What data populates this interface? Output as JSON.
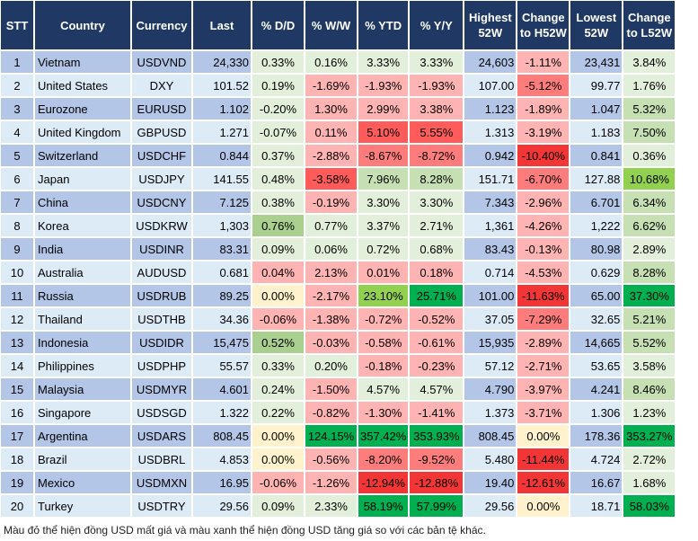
{
  "headers": [
    "STT",
    "Country",
    "Currency",
    "Last",
    "% D/D",
    "% W/W",
    "% YTD",
    "% Y/Y",
    "Highest 52W",
    "Change to H52W",
    "Lowest 52W",
    "Change to L52W"
  ],
  "color_legend": {
    "g1": "#E2EFDA",
    "g2": "#C6E0B4",
    "g3": "#A9D08E",
    "g4": "#92D050",
    "g5": "#00B050",
    "y": "#FFF2CC",
    "r1": "#FFB3B3",
    "r2": "#FF7C7C",
    "r3": "#FF5B5B",
    "r4": "#F33535",
    "header": "#203864",
    "row_odd": "#B4C6E7",
    "row_even": "#DDEBF7"
  },
  "rows": [
    {
      "stt": "1",
      "country": "Vietnam",
      "currency": "USDVND",
      "last": "24,330",
      "dd": "0.33%",
      "ww": "0.16%",
      "ytd": "3.33%",
      "yy": "3.33%",
      "high": "24,603",
      "ch": "-1.11%",
      "low": "23,431",
      "cl": "3.84%",
      "colors": [
        "g1",
        "g1",
        "g1",
        "g1",
        "r1",
        "g1"
      ]
    },
    {
      "stt": "2",
      "country": "United States",
      "currency": "DXY",
      "last": "101.52",
      "dd": "0.19%",
      "ww": "-1.69%",
      "ytd": "-1.93%",
      "yy": "-1.93%",
      "high": "107.00",
      "ch": "-5.12%",
      "low": "99.77",
      "cl": "1.76%",
      "colors": [
        "g1",
        "r1",
        "r1",
        "r1",
        "r2",
        "g1"
      ]
    },
    {
      "stt": "3",
      "country": "Eurozone",
      "currency": "EURUSD",
      "last": "1.102",
      "dd": "-0.20%",
      "ww": "1.30%",
      "ytd": "2.99%",
      "yy": "3.38%",
      "high": "1.123",
      "ch": "-1.89%",
      "low": "1.047",
      "cl": "5.32%",
      "colors": [
        "g1",
        "r1",
        "r1",
        "r1",
        "r1",
        "g2"
      ]
    },
    {
      "stt": "4",
      "country": "United Kingdom",
      "currency": "GBPUSD",
      "last": "1.271",
      "dd": "-0.07%",
      "ww": "0.11%",
      "ytd": "5.10%",
      "yy": "5.55%",
      "high": "1.313",
      "ch": "-3.19%",
      "low": "1.183",
      "cl": "7.50%",
      "colors": [
        "g1",
        "r1",
        "r3",
        "r3",
        "r1",
        "g2"
      ]
    },
    {
      "stt": "5",
      "country": "Switzerland",
      "currency": "USDCHF",
      "last": "0.844",
      "dd": "0.37%",
      "ww": "-2.88%",
      "ytd": "-8.67%",
      "yy": "-8.72%",
      "high": "0.942",
      "ch": "-10.40%",
      "low": "0.841",
      "cl": "0.36%",
      "colors": [
        "g1",
        "r1",
        "r2",
        "r2",
        "r4",
        "g1"
      ]
    },
    {
      "stt": "6",
      "country": "Japan",
      "currency": "USDJPY",
      "last": "141.55",
      "dd": "0.48%",
      "ww": "-3.58%",
      "ytd": "7.96%",
      "yy": "8.28%",
      "high": "151.71",
      "ch": "-6.70%",
      "low": "127.88",
      "cl": "10.68%",
      "colors": [
        "g1",
        "r3",
        "g2",
        "g2",
        "r2",
        "g4"
      ]
    },
    {
      "stt": "7",
      "country": "China",
      "currency": "USDCNY",
      "last": "7.125",
      "dd": "0.38%",
      "ww": "-0.19%",
      "ytd": "3.30%",
      "yy": "3.30%",
      "high": "7.343",
      "ch": "-2.96%",
      "low": "6.701",
      "cl": "6.34%",
      "colors": [
        "g1",
        "r1",
        "g1",
        "g1",
        "r1",
        "g2"
      ]
    },
    {
      "stt": "8",
      "country": "Korea",
      "currency": "USDKRW",
      "last": "1,303",
      "dd": "0.76%",
      "ww": "0.77%",
      "ytd": "3.37%",
      "yy": "2.71%",
      "high": "1,361",
      "ch": "-4.26%",
      "low": "1,222",
      "cl": "6.62%",
      "colors": [
        "g3",
        "g1",
        "g1",
        "g1",
        "r1",
        "g2"
      ]
    },
    {
      "stt": "9",
      "country": "India",
      "currency": "USDINR",
      "last": "83.31",
      "dd": "0.09%",
      "ww": "0.06%",
      "ytd": "0.72%",
      "yy": "0.68%",
      "high": "83.43",
      "ch": "-0.13%",
      "low": "80.98",
      "cl": "2.89%",
      "colors": [
        "g1",
        "g1",
        "g1",
        "g1",
        "r1",
        "g1"
      ]
    },
    {
      "stt": "10",
      "country": "Australia",
      "currency": "AUDUSD",
      "last": "0.681",
      "dd": "0.04%",
      "ww": "2.13%",
      "ytd": "0.01%",
      "yy": "0.18%",
      "high": "0.714",
      "ch": "-4.53%",
      "low": "0.629",
      "cl": "8.28%",
      "colors": [
        "r1",
        "r1",
        "r1",
        "r1",
        "r1",
        "g2"
      ]
    },
    {
      "stt": "11",
      "country": "Russia",
      "currency": "USDRUB",
      "last": "89.25",
      "dd": "0.00%",
      "ww": "-2.17%",
      "ytd": "23.10%",
      "yy": "25.71%",
      "high": "101.00",
      "ch": "-11.63%",
      "low": "65.00",
      "cl": "37.30%",
      "colors": [
        "y",
        "r1",
        "g4",
        "g5",
        "r4",
        "g5"
      ]
    },
    {
      "stt": "12",
      "country": "Thailand",
      "currency": "USDTHB",
      "last": "34.36",
      "dd": "-0.06%",
      "ww": "-1.38%",
      "ytd": "-0.72%",
      "yy": "-0.52%",
      "high": "37.05",
      "ch": "-7.29%",
      "low": "32.65",
      "cl": "5.21%",
      "colors": [
        "r1",
        "r1",
        "r1",
        "r1",
        "r2",
        "g2"
      ]
    },
    {
      "stt": "13",
      "country": "Indonesia",
      "currency": "USDIDR",
      "last": "15,475",
      "dd": "0.52%",
      "ww": "-0.03%",
      "ytd": "-0.58%",
      "yy": "-0.61%",
      "high": "15,935",
      "ch": "-2.89%",
      "low": "14,665",
      "cl": "5.52%",
      "colors": [
        "g3",
        "r1",
        "r1",
        "r1",
        "r1",
        "g2"
      ]
    },
    {
      "stt": "14",
      "country": "Philippines",
      "currency": "USDPHP",
      "last": "55.57",
      "dd": "0.33%",
      "ww": "0.20%",
      "ytd": "-0.18%",
      "yy": "-0.23%",
      "high": "57.12",
      "ch": "-2.71%",
      "low": "53.65",
      "cl": "3.58%",
      "colors": [
        "g1",
        "g1",
        "r1",
        "r1",
        "r1",
        "g1"
      ]
    },
    {
      "stt": "15",
      "country": "Malaysia",
      "currency": "USDMYR",
      "last": "4.601",
      "dd": "0.24%",
      "ww": "-1.50%",
      "ytd": "4.57%",
      "yy": "4.57%",
      "high": "4.790",
      "ch": "-3.97%",
      "low": "4.241",
      "cl": "8.46%",
      "colors": [
        "g1",
        "r1",
        "g1",
        "g1",
        "r1",
        "g2"
      ]
    },
    {
      "stt": "16",
      "country": "Singapore",
      "currency": "USDSGD",
      "last": "1.322",
      "dd": "0.22%",
      "ww": "-0.82%",
      "ytd": "-1.30%",
      "yy": "-1.41%",
      "high": "1.373",
      "ch": "-3.71%",
      "low": "1.306",
      "cl": "1.23%",
      "colors": [
        "g1",
        "r1",
        "r1",
        "r1",
        "r1",
        "g1"
      ]
    },
    {
      "stt": "17",
      "country": "Argentina",
      "currency": "USDARS",
      "last": "808.45",
      "dd": "0.00%",
      "ww": "124.15%",
      "ytd": "357.42%",
      "yy": "353.93%",
      "high": "808.45",
      "ch": "0.00%",
      "low": "178.36",
      "cl": "353.27%",
      "colors": [
        "y",
        "g5",
        "g5",
        "g5",
        "y",
        "g5"
      ]
    },
    {
      "stt": "18",
      "country": "Brazil",
      "currency": "USDBRL",
      "last": "4.853",
      "dd": "0.00%",
      "ww": "-0.56%",
      "ytd": "-8.20%",
      "yy": "-9.52%",
      "high": "5.480",
      "ch": "-11.44%",
      "low": "4.724",
      "cl": "2.72%",
      "colors": [
        "y",
        "r1",
        "r2",
        "r2",
        "r4",
        "g1"
      ]
    },
    {
      "stt": "19",
      "country": "Mexico",
      "currency": "USDMXN",
      "last": "16.95",
      "dd": "-0.06%",
      "ww": "-1.26%",
      "ytd": "-12.94%",
      "yy": "-12.88%",
      "high": "19.40",
      "ch": "-12.61%",
      "low": "16.67",
      "cl": "1.68%",
      "colors": [
        "r1",
        "r1",
        "r4",
        "r4",
        "r4",
        "g1"
      ]
    },
    {
      "stt": "20",
      "country": "Turkey",
      "currency": "USDTRY",
      "last": "29.56",
      "dd": "0.09%",
      "ww": "2.33%",
      "ytd": "58.19%",
      "yy": "57.99%",
      "high": "29.56",
      "ch": "0.00%",
      "low": "18.71",
      "cl": "58.03%",
      "colors": [
        "g1",
        "g1",
        "g5",
        "g5",
        "y",
        "g5"
      ]
    }
  ],
  "footnote": "Màu đỏ thể hiện đồng USD mất giá và màu xanh thể hiện đồng USD tăng giá so với các bản tệ khác."
}
